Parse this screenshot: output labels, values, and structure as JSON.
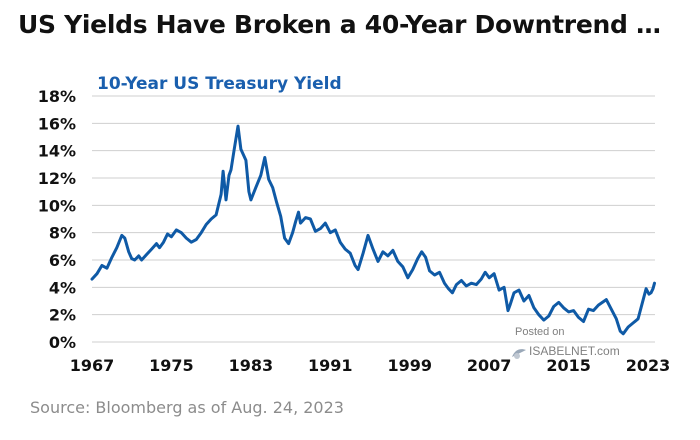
{
  "title": "US Yields Have Broken a 40-Year Downtrend …",
  "source": "Source: Bloomberg as of Aug. 24, 2023",
  "watermark": {
    "line1": "Posted on",
    "line2": "ISABELNET.com"
  },
  "colors": {
    "series": "#0f5aa6",
    "grid": "#cfcfcf",
    "text": "#111111",
    "chart_title": "#1a5fae"
  },
  "chart_data": {
    "type": "line",
    "title": "10-Year US Treasury Yield",
    "xlabel": "",
    "ylabel": "",
    "xlim": [
      1967,
      2023.7
    ],
    "ylim": [
      0,
      18
    ],
    "x_ticks": [
      1967,
      1975,
      1983,
      1991,
      1999,
      2007,
      2015,
      2023
    ],
    "y_ticks": [
      0,
      2,
      4,
      6,
      8,
      10,
      12,
      14,
      16,
      18
    ],
    "y_tick_labels": [
      "0%",
      "2%",
      "4%",
      "6%",
      "8%",
      "10%",
      "12%",
      "14%",
      "16%",
      "18%"
    ],
    "grid": "horizontal",
    "series": [
      {
        "x": [
          1967.0,
          1967.5,
          1968.0,
          1968.5,
          1969.0,
          1969.5,
          1970.0,
          1970.3,
          1970.7,
          1971.0,
          1971.3,
          1971.7,
          1972.0,
          1972.5,
          1973.0,
          1973.5,
          1973.8,
          1974.2,
          1974.6,
          1975.0,
          1975.5,
          1976.0,
          1976.5,
          1977.0,
          1977.5,
          1978.0,
          1978.5,
          1979.0,
          1979.5,
          1980.0,
          1980.2,
          1980.5,
          1980.8,
          1981.0,
          1981.3,
          1981.7,
          1982.0,
          1982.5,
          1982.8,
          1983.0,
          1983.5,
          1984.0,
          1984.4,
          1984.8,
          1985.2,
          1985.6,
          1986.0,
          1986.4,
          1986.8,
          1987.2,
          1987.5,
          1987.8,
          1988.0,
          1988.5,
          1989.0,
          1989.5,
          1990.0,
          1990.5,
          1991.0,
          1991.5,
          1992.0,
          1992.5,
          1993.0,
          1993.5,
          1993.8,
          1994.3,
          1994.8,
          1995.3,
          1995.8,
          1996.3,
          1996.8,
          1997.3,
          1997.8,
          1998.3,
          1998.8,
          1999.3,
          1999.8,
          2000.2,
          2000.6,
          2001.0,
          2001.5,
          2002.0,
          2002.5,
          2002.9,
          2003.3,
          2003.7,
          2004.2,
          2004.7,
          2005.2,
          2005.7,
          2006.2,
          2006.6,
          2007.0,
          2007.5,
          2008.0,
          2008.5,
          2008.9,
          2009.1,
          2009.5,
          2010.0,
          2010.5,
          2011.0,
          2011.5,
          2012.0,
          2012.5,
          2013.0,
          2013.5,
          2014.0,
          2014.5,
          2015.0,
          2015.5,
          2016.0,
          2016.5,
          2017.0,
          2017.5,
          2018.0,
          2018.8,
          2019.3,
          2019.8,
          2020.2,
          2020.5,
          2021.0,
          2021.5,
          2022.0,
          2022.4,
          2022.8,
          2023.1,
          2023.3,
          2023.5,
          2023.65
        ],
        "y": [
          4.6,
          5.0,
          5.6,
          5.4,
          6.2,
          6.9,
          7.8,
          7.6,
          6.6,
          6.1,
          6.0,
          6.3,
          6.0,
          6.4,
          6.8,
          7.2,
          6.9,
          7.3,
          7.9,
          7.7,
          8.2,
          8.0,
          7.6,
          7.3,
          7.5,
          8.0,
          8.6,
          9.0,
          9.3,
          10.8,
          12.5,
          10.4,
          12.2,
          12.6,
          14.0,
          15.8,
          14.1,
          13.3,
          11.0,
          10.4,
          11.3,
          12.2,
          13.5,
          11.9,
          11.3,
          10.2,
          9.2,
          7.6,
          7.2,
          8.0,
          8.8,
          9.5,
          8.7,
          9.1,
          9.0,
          8.1,
          8.3,
          8.7,
          8.0,
          8.2,
          7.3,
          6.8,
          6.5,
          5.6,
          5.3,
          6.5,
          7.8,
          6.8,
          5.9,
          6.6,
          6.3,
          6.7,
          5.9,
          5.5,
          4.7,
          5.3,
          6.1,
          6.6,
          6.2,
          5.2,
          4.9,
          5.1,
          4.3,
          3.9,
          3.6,
          4.2,
          4.5,
          4.1,
          4.3,
          4.2,
          4.6,
          5.1,
          4.7,
          5.0,
          3.8,
          4.0,
          2.3,
          2.7,
          3.6,
          3.8,
          3.0,
          3.4,
          2.5,
          2.0,
          1.6,
          1.9,
          2.6,
          2.9,
          2.5,
          2.2,
          2.3,
          1.8,
          1.5,
          2.4,
          2.3,
          2.7,
          3.1,
          2.4,
          1.7,
          0.8,
          0.6,
          1.1,
          1.4,
          1.7,
          2.8,
          3.9,
          3.5,
          3.6,
          3.9,
          4.3
        ]
      }
    ]
  }
}
